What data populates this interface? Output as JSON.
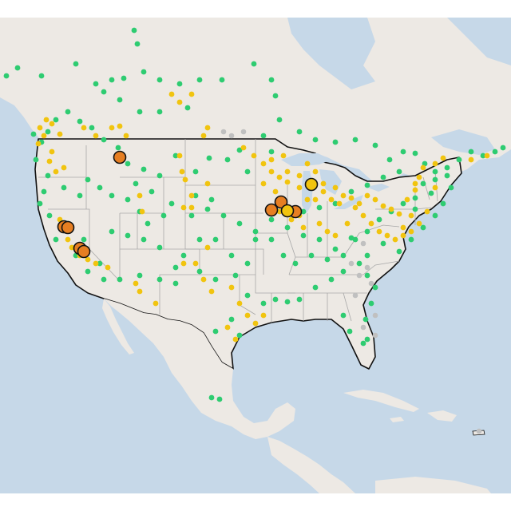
{
  "map": {
    "colors": {
      "ocean": "#c6d8e8",
      "land": "#ede9e4",
      "land_alt": "#e6e2dc",
      "lakes": "#c6d8e8",
      "state_border": "#a8a8a8",
      "country_border": "#111111",
      "green": "#2ecc71",
      "yellow": "#f1c40f",
      "gray": "#c0c0c0",
      "orange": "#e67e22",
      "marker_outline": "#111111"
    },
    "marker_types": [
      "green-dot",
      "yellow-dot",
      "gray-dot",
      "orange-circle",
      "yellow-circle"
    ]
  }
}
